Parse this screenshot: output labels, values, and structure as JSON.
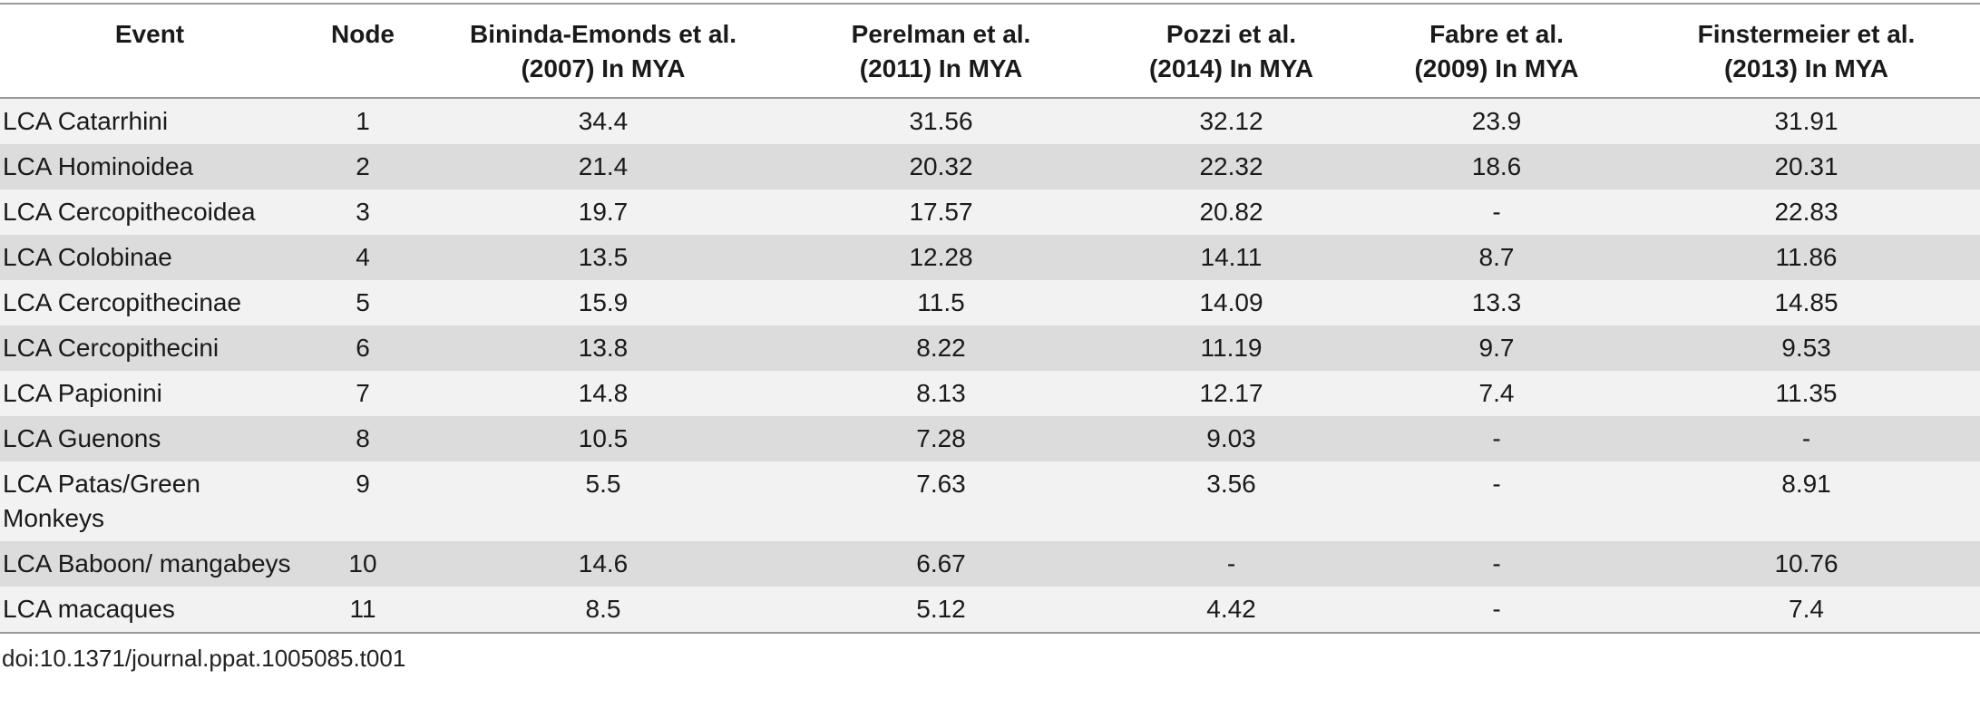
{
  "table": {
    "columns": [
      [
        "Event"
      ],
      [
        "Node"
      ],
      [
        "Bininda-Emonds et al.",
        "(2007) In MYA"
      ],
      [
        "Perelman et al.",
        "(2011) In MYA"
      ],
      [
        "Pozzi et al.",
        "(2014) In MYA"
      ],
      [
        "Fabre et al.",
        "(2009) In MYA"
      ],
      [
        "Finstermeier et al.",
        "(2013) In MYA"
      ]
    ],
    "rows": [
      [
        "LCA Catarrhini",
        "1",
        "34.4",
        "31.56",
        "32.12",
        "23.9",
        "31.91"
      ],
      [
        "LCA Hominoidea",
        "2",
        "21.4",
        "20.32",
        "22.32",
        "18.6",
        "20.31"
      ],
      [
        "LCA Cercopithecoidea",
        "3",
        "19.7",
        "17.57",
        "20.82",
        "-",
        "22.83"
      ],
      [
        "LCA Colobinae",
        "4",
        "13.5",
        "12.28",
        "14.11",
        "8.7",
        "11.86"
      ],
      [
        "LCA Cercopithecinae",
        "5",
        "15.9",
        "11.5",
        "14.09",
        "13.3",
        "14.85"
      ],
      [
        "LCA Cercopithecini",
        "6",
        "13.8",
        "8.22",
        "11.19",
        "9.7",
        "9.53"
      ],
      [
        "LCA Papionini",
        "7",
        "14.8",
        "8.13",
        "12.17",
        "7.4",
        "11.35"
      ],
      [
        "LCA Guenons",
        "8",
        "10.5",
        "7.28",
        "9.03",
        "-",
        "-"
      ],
      [
        "LCA Patas/Green Monkeys",
        "9",
        "5.5",
        "7.63",
        "3.56",
        "-",
        "8.91"
      ],
      [
        "LCA Baboon/ mangabeys",
        "10",
        "14.6",
        "6.67",
        "-",
        "-",
        "10.76"
      ],
      [
        "LCA macaques",
        "11",
        "8.5",
        "5.12",
        "4.42",
        "-",
        "7.4"
      ]
    ],
    "footer": "doi:10.1371/journal.ppat.1005085.t001"
  }
}
